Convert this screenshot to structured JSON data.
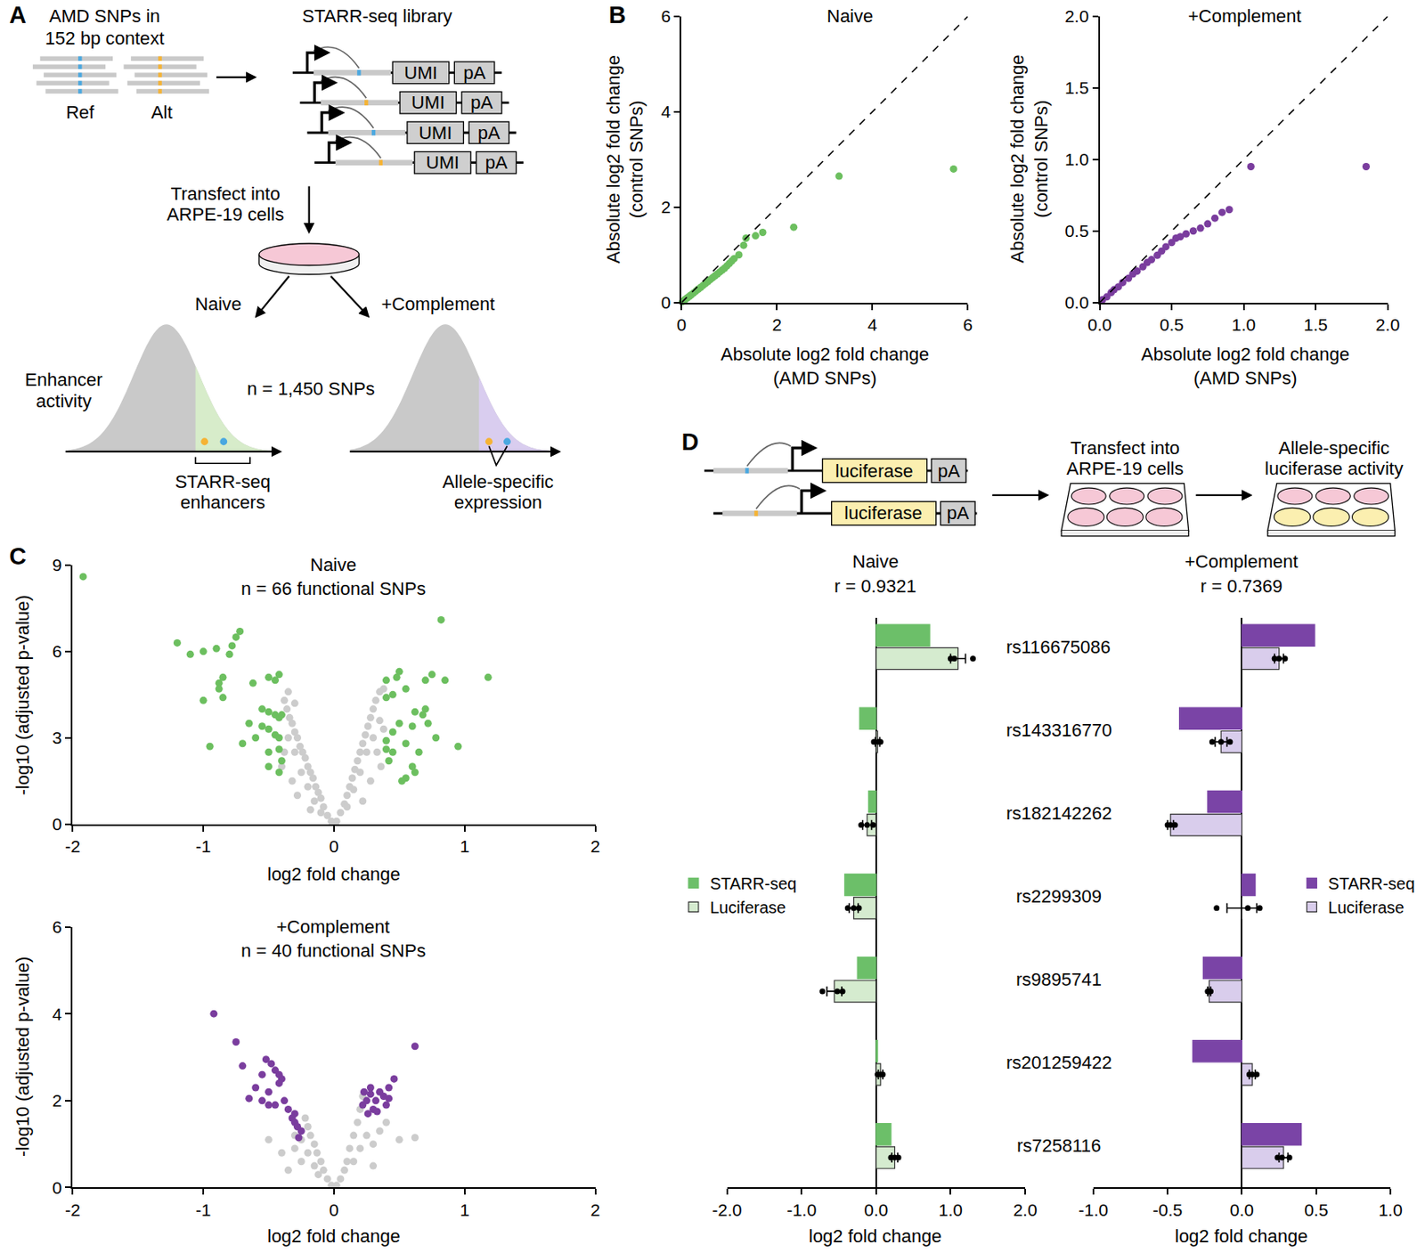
{
  "panel_letters": [
    "A",
    "B",
    "C",
    "D"
  ],
  "diagram_A": {
    "input_title": [
      "AMD SNPs in",
      "152 bp context"
    ],
    "ref": "Ref",
    "alt": "Alt",
    "library_title": "STARR-seq library",
    "umi": "UMI",
    "pa": "pA",
    "transfect": [
      "Transfect into",
      "ARPE-19 cells"
    ],
    "naive": "Naive",
    "complement": "+Complement",
    "y_label": [
      "Enhancer",
      "activity"
    ],
    "n_label": "n = 1,450 SNPs",
    "left_bracket": [
      "STARR-seq",
      "enhancers"
    ],
    "right_bracket": [
      "Allele-specific",
      "expression"
    ]
  },
  "diagram_D": {
    "reporter": "luciferase",
    "pa": "pA",
    "transfect": [
      "Transfect into",
      "ARPE-19 cells"
    ],
    "readout": [
      "Allele-specific",
      "luciferase activity"
    ]
  },
  "chart_data": [
    {
      "type": "scatter",
      "title": "Naive",
      "x_label": [
        "Absolute log2 fold change",
        "(AMD SNPs)"
      ],
      "y_label": [
        "Absolute log2 fold change",
        "(control SNPs)"
      ],
      "xlim": [
        0,
        6
      ],
      "ylim": [
        0,
        6
      ],
      "xticks": [
        0,
        2,
        4,
        6
      ],
      "yticks": [
        0,
        2,
        4,
        6
      ],
      "grid": false,
      "series": [
        {
          "color": "#6cbf5f",
          "marker": "circle",
          "x": [
            0.02,
            0.05,
            0.08,
            0.12,
            0.16,
            0.2,
            0.25,
            0.3,
            0.35,
            0.4,
            0.45,
            0.5,
            0.55,
            0.6,
            0.65,
            0.7,
            0.75,
            0.8,
            0.85,
            0.9,
            0.95,
            1.0,
            1.05,
            1.1,
            1.2,
            1.3,
            1.35,
            1.55,
            1.7,
            2.35,
            3.3,
            5.7
          ],
          "y": [
            0.02,
            0.04,
            0.07,
            0.1,
            0.13,
            0.16,
            0.2,
            0.24,
            0.28,
            0.32,
            0.36,
            0.4,
            0.44,
            0.48,
            0.52,
            0.56,
            0.6,
            0.64,
            0.68,
            0.72,
            0.77,
            0.82,
            0.87,
            0.92,
            1.0,
            1.2,
            1.35,
            1.4,
            1.47,
            1.58,
            2.65,
            2.8
          ]
        },
        {
          "type": "line",
          "line_style": "dashed",
          "color": "#000000",
          "x": [
            0,
            6
          ],
          "y": [
            0,
            6
          ]
        }
      ]
    },
    {
      "type": "scatter",
      "title": "+Complement",
      "x_label": [
        "Absolute log2 fold change",
        "(AMD SNPs)"
      ],
      "y_label": [
        "Absolute log2 fold change",
        "(control SNPs)"
      ],
      "xlim": [
        0,
        2
      ],
      "ylim": [
        0,
        2
      ],
      "xticks": [
        {
          "value": 0,
          "label": "0.0"
        },
        0.5,
        {
          "value": 1,
          "label": "1.0"
        },
        1.5,
        {
          "value": 2,
          "label": "2.0"
        }
      ],
      "yticks": [
        {
          "value": 0,
          "label": "0.0"
        },
        0.5,
        {
          "value": 1,
          "label": "1.0"
        },
        1.5,
        {
          "value": 2,
          "label": "2.0"
        }
      ],
      "grid": false,
      "series": [
        {
          "color": "#7a3d9e",
          "marker": "circle",
          "x": [
            0.02,
            0.05,
            0.08,
            0.1,
            0.13,
            0.16,
            0.2,
            0.23,
            0.26,
            0.3,
            0.33,
            0.36,
            0.4,
            0.43,
            0.46,
            0.5,
            0.53,
            0.56,
            0.6,
            0.65,
            0.7,
            0.75,
            0.8,
            0.85,
            0.9,
            1.05,
            1.85
          ],
          "y": [
            0.02,
            0.04,
            0.07,
            0.09,
            0.11,
            0.14,
            0.17,
            0.2,
            0.22,
            0.25,
            0.28,
            0.3,
            0.33,
            0.36,
            0.39,
            0.42,
            0.45,
            0.46,
            0.48,
            0.5,
            0.52,
            0.55,
            0.59,
            0.63,
            0.65,
            0.95,
            0.95
          ]
        },
        {
          "type": "line",
          "line_style": "dashed",
          "color": "#000000",
          "x": [
            0,
            2
          ],
          "y": [
            0,
            2
          ]
        }
      ]
    },
    {
      "type": "scatter",
      "title": "Naive",
      "subtitle": "n = 66 functional SNPs",
      "x_label": "log2 fold change",
      "y_label": "-log10 (adjusted p-value)",
      "xlim": [
        -2,
        2
      ],
      "ylim": [
        0,
        9
      ],
      "xticks": [
        -2,
        -1,
        0,
        1,
        2
      ],
      "yticks": [
        0,
        3,
        6,
        9
      ],
      "grid": false,
      "series": [
        {
          "color": "#cccccc",
          "marker": "circle",
          "x": [
            -0.02,
            -0.05,
            -0.08,
            -0.1,
            -0.12,
            -0.14,
            -0.16,
            -0.18,
            -0.2,
            -0.22,
            -0.24,
            -0.26,
            -0.28,
            -0.3,
            -0.32,
            -0.34,
            -0.36,
            -0.38,
            -0.3,
            -0.25,
            -0.2,
            -0.15,
            -0.1,
            -0.35,
            -0.38,
            -0.4,
            -0.32,
            -0.28,
            -0.18,
            -0.35,
            -0.3,
            0.02,
            0.05,
            0.08,
            0.1,
            0.12,
            0.14,
            0.16,
            0.18,
            0.2,
            0.22,
            0.24,
            0.26,
            0.28,
            0.3,
            0.32,
            0.35,
            0.38,
            0.25,
            0.2,
            0.15,
            0.1,
            0.3,
            0.33,
            0.36,
            0.28,
            0.22,
            0.35,
            0.38
          ],
          "y": [
            0.1,
            0.3,
            0.6,
            0.9,
            1.1,
            1.3,
            1.6,
            1.8,
            2.0,
            2.3,
            2.5,
            2.7,
            3.0,
            3.2,
            3.5,
            3.7,
            4.0,
            4.3,
            2.5,
            1.8,
            1.3,
            0.8,
            0.4,
            3.0,
            2.5,
            2.0,
            1.5,
            1.0,
            0.5,
            4.6,
            4.2,
            0.1,
            0.4,
            0.7,
            1.0,
            1.3,
            1.6,
            1.9,
            2.2,
            2.5,
            2.8,
            3.1,
            3.4,
            3.7,
            4.0,
            4.3,
            4.6,
            4.7,
            2.5,
            1.8,
            1.2,
            0.6,
            3.0,
            2.5,
            2.0,
            1.5,
            0.8,
            3.6,
            3.3
          ]
        },
        {
          "color": "#6cbf5f",
          "marker": "circle",
          "x": [
            -1.92,
            -1.2,
            -1.1,
            -1.0,
            -0.9,
            -0.8,
            -0.75,
            -0.72,
            -0.78,
            -0.85,
            -0.88,
            -0.62,
            -0.5,
            -0.45,
            -0.42,
            -0.88,
            -0.85,
            -1.0,
            -0.55,
            -0.5,
            -0.45,
            -0.42,
            -0.4,
            -0.55,
            -0.5,
            -0.45,
            -0.42,
            -0.7,
            -0.6,
            -0.95,
            -0.5,
            -0.42,
            -0.5,
            -0.42,
            -0.4,
            -0.65,
            0.82,
            1.18,
            0.85,
            0.75,
            0.7,
            0.5,
            0.48,
            0.4,
            0.55,
            0.45,
            0.4,
            0.95,
            0.7,
            0.62,
            0.72,
            0.6,
            0.5,
            0.45,
            0.4,
            0.55,
            0.45,
            0.42,
            0.62,
            0.55,
            0.52,
            0.6,
            0.4,
            0.68,
            0.78,
            0.65
          ],
          "y": [
            8.6,
            6.3,
            5.9,
            6.0,
            6.1,
            5.9,
            6.5,
            6.7,
            6.2,
            5.1,
            4.9,
            4.9,
            5.1,
            5.0,
            5.2,
            4.7,
            4.4,
            4.3,
            4.0,
            3.9,
            3.8,
            3.7,
            3.8,
            3.4,
            3.3,
            3.1,
            3.0,
            2.8,
            3.0,
            2.7,
            2.5,
            2.6,
            2.0,
            1.8,
            2.2,
            3.5,
            7.1,
            5.1,
            5.0,
            5.2,
            5.0,
            5.3,
            5.1,
            5.0,
            4.7,
            4.5,
            4.4,
            2.7,
            4.0,
            3.9,
            3.5,
            3.4,
            3.5,
            3.2,
            2.9,
            2.8,
            2.5,
            2.2,
            1.8,
            1.6,
            1.5,
            2.0,
            2.6,
            3.8,
            3.0,
            2.5
          ]
        }
      ]
    },
    {
      "type": "scatter",
      "title": "+Complement",
      "subtitle": "n = 40 functional SNPs",
      "x_label": "log2 fold change",
      "y_label": "-log10 (adjusted p-value)",
      "xlim": [
        -2,
        2
      ],
      "ylim": [
        0,
        6
      ],
      "xticks": [
        -2,
        -1,
        0,
        1,
        2
      ],
      "yticks": [
        0,
        2,
        4,
        6
      ],
      "grid": false,
      "series": [
        {
          "color": "#cccccc",
          "marker": "circle",
          "x": [
            -0.02,
            -0.05,
            -0.08,
            -0.1,
            -0.13,
            -0.15,
            -0.18,
            -0.2,
            -0.22,
            -0.25,
            -0.2,
            -0.15,
            -0.12,
            -0.3,
            -0.25,
            -0.4,
            -0.5,
            -0.3,
            0.02,
            0.05,
            0.08,
            0.1,
            0.12,
            0.15,
            0.18,
            0.2,
            0.22,
            0.15,
            0.2,
            0.25,
            0.3,
            0.35,
            0.4,
            0.5,
            0.62,
            0.3,
            -0.35
          ],
          "y": [
            0.05,
            0.2,
            0.4,
            0.6,
            0.8,
            1.0,
            1.2,
            1.4,
            1.6,
            1.1,
            0.8,
            0.5,
            0.3,
            0.9,
            0.6,
            0.8,
            1.1,
            1.2,
            0.05,
            0.2,
            0.4,
            0.6,
            0.9,
            1.2,
            1.5,
            1.8,
            2.1,
            0.6,
            0.9,
            1.2,
            1.0,
            1.3,
            1.5,
            1.1,
            1.15,
            0.5,
            0.4
          ]
        },
        {
          "color": "#7a3d9e",
          "marker": "circle",
          "x": [
            -0.92,
            -0.75,
            -0.7,
            -0.52,
            -0.48,
            -0.45,
            -0.55,
            -0.4,
            -0.6,
            -0.5,
            -0.42,
            -0.55,
            -0.38,
            -0.45,
            -0.35,
            -0.3,
            -0.3,
            -0.28,
            -0.25,
            -0.32,
            -0.42,
            -0.65,
            -0.5,
            -0.27,
            0.62,
            0.46,
            0.42,
            0.38,
            0.32,
            0.28,
            0.25,
            0.22,
            0.3,
            0.4,
            0.26,
            0.35,
            0.23,
            0.28,
            0.42,
            0.33
          ],
          "y": [
            4.0,
            3.35,
            2.8,
            2.95,
            2.85,
            2.7,
            2.6,
            2.5,
            2.3,
            2.2,
            2.4,
            2.0,
            2.0,
            1.9,
            1.8,
            1.7,
            1.5,
            1.4,
            1.3,
            1.6,
            2.6,
            2.05,
            1.9,
            1.15,
            3.25,
            2.5,
            2.3,
            2.1,
            2.0,
            2.15,
            2.0,
            1.9,
            1.8,
            1.9,
            1.7,
            2.2,
            2.2,
            2.3,
            2.05,
            1.75
          ]
        }
      ]
    },
    {
      "type": "bar",
      "orientation": "horizontal",
      "title": "Naive",
      "subtitle": "r = 0.9321",
      "categories": [
        "rs116675086",
        "rs143316770",
        "rs182142262",
        "rs2299309",
        "rs9895741",
        "rs201259422",
        "rs7258116"
      ],
      "x_label": "log2 fold change",
      "xlim": [
        -2,
        2
      ],
      "xticks": [
        {
          "value": -2,
          "label": "-2.0"
        },
        {
          "value": -1,
          "label": "-1.0"
        },
        {
          "value": 0,
          "label": "0.0"
        },
        {
          "value": 1,
          "label": "1.0"
        },
        {
          "value": 2,
          "label": "2.0"
        }
      ],
      "grid": false,
      "legend": "left",
      "series": [
        {
          "name": "STARR-seq",
          "color": "#6cbf69",
          "values": [
            0.72,
            -0.22,
            -0.1,
            -0.42,
            -0.25,
            0.02,
            0.2
          ]
        },
        {
          "name": "Luciferase",
          "color": "#d5ebcf",
          "values": [
            1.1,
            0.02,
            -0.12,
            -0.3,
            -0.56,
            0.06,
            0.25
          ],
          "error": [
            0.1,
            0.03,
            0.06,
            0.06,
            0.1,
            0.03,
            0.04
          ],
          "replicates": [
            [
              1.0,
              1.05,
              1.3
            ],
            [
              -0.03,
              0.03,
              0.06
            ],
            [
              -0.2,
              -0.12,
              -0.04
            ],
            [
              -0.38,
              -0.3,
              -0.23
            ],
            [
              -0.72,
              -0.52,
              -0.45
            ],
            [
              0.02,
              0.06,
              0.09
            ],
            [
              0.2,
              0.25,
              0.3
            ]
          ]
        }
      ]
    },
    {
      "type": "bar",
      "orientation": "horizontal",
      "title": "+Complement",
      "subtitle": "r = 0.7369",
      "categories": [
        "rs116675086",
        "rs143316770",
        "rs182142262",
        "rs2299309",
        "rs9895741",
        "rs201259422",
        "rs7258116"
      ],
      "x_label": "log2 fold change",
      "xlim": [
        -1,
        1
      ],
      "xticks": [
        {
          "value": -1,
          "label": "-1.0"
        },
        -0.5,
        {
          "value": 0,
          "label": "0.0"
        },
        0.5,
        {
          "value": 1,
          "label": "1.0"
        }
      ],
      "grid": false,
      "legend": "right",
      "series": [
        {
          "name": "STARR-seq",
          "color": "#7a44a6",
          "values": [
            0.49,
            -0.42,
            -0.23,
            0.09,
            -0.26,
            -0.33,
            0.4
          ]
        },
        {
          "name": "Luciferase",
          "color": "#d9cdec",
          "values": [
            0.25,
            -0.14,
            -0.48,
            0.0,
            -0.22,
            0.07,
            0.28
          ],
          "error": [
            0.03,
            0.04,
            0.02,
            0.1,
            0.01,
            0.02,
            0.03
          ],
          "replicates": [
            [
              0.22,
              0.25,
              0.29
            ],
            [
              -0.2,
              -0.14,
              -0.08
            ],
            [
              -0.5,
              -0.48,
              -0.45
            ],
            [
              -0.17,
              0.04,
              0.12
            ],
            [
              -0.23,
              -0.22,
              -0.21
            ],
            [
              0.05,
              0.07,
              0.1
            ],
            [
              0.24,
              0.27,
              0.32
            ]
          ]
        }
      ]
    }
  ]
}
